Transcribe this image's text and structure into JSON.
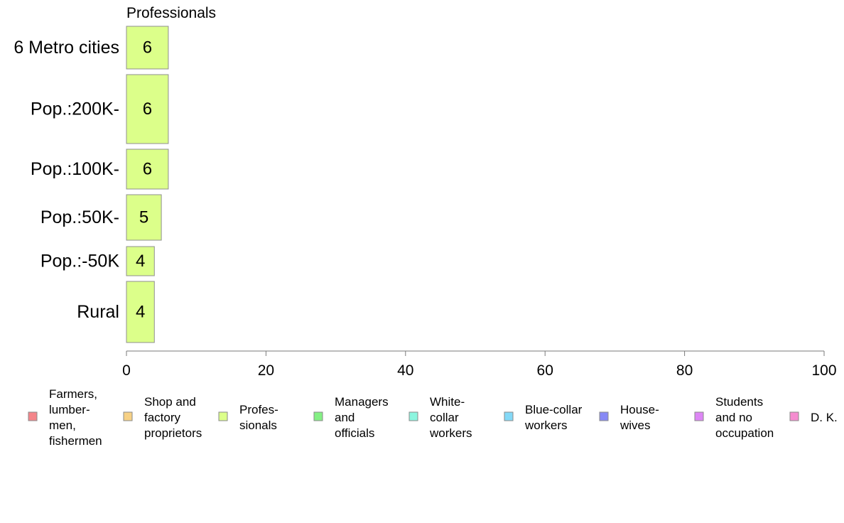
{
  "chart_data": {
    "type": "bar",
    "orientation": "horizontal",
    "panel_title": "Professionals",
    "categories": [
      "6 Metro cities",
      "Pop.:200K-",
      "Pop.:100K-",
      "Pop.:50K-",
      "Pop.:-50K",
      "Rural"
    ],
    "series": [
      {
        "name": "Professionals",
        "values": [
          6,
          6,
          6,
          5,
          4,
          4
        ],
        "labels": [
          "6",
          "6",
          "6",
          "5",
          "4",
          "4"
        ],
        "color": "#dcff8a",
        "stroke": "#8f8f8f"
      }
    ],
    "xlim": [
      0,
      100
    ],
    "xticks": [
      0,
      20,
      40,
      60,
      80,
      100
    ],
    "grid": false,
    "legend_position": "bottom",
    "legend": [
      {
        "label": "Farmers, lumber- men, fishermen",
        "lines": [
          "Farmers,",
          "lumber-",
          "men,",
          "fishermen"
        ],
        "color": "#f4858a"
      },
      {
        "label": "Shop and factory proprietors",
        "lines": [
          "Shop and",
          "factory",
          "proprietors"
        ],
        "color": "#f7d185"
      },
      {
        "label": "Profes- sionals",
        "lines": [
          "Profes-",
          "sionals"
        ],
        "color": "#dcff8a"
      },
      {
        "label": "Managers and officials",
        "lines": [
          "Managers",
          "and",
          "officials"
        ],
        "color": "#84f084"
      },
      {
        "label": "White- collar workers",
        "lines": [
          "White-",
          "collar",
          "workers"
        ],
        "color": "#8cf5df"
      },
      {
        "label": "Blue-collar workers",
        "lines": [
          "Blue-collar",
          "workers"
        ],
        "color": "#84d9f7"
      },
      {
        "label": "House- wives",
        "lines": [
          "House-",
          "wives"
        ],
        "color": "#8789f5"
      },
      {
        "label": "Students and no occupation",
        "lines": [
          "Students",
          "and no",
          "occupation"
        ],
        "color": "#dd86f5"
      },
      {
        "label": "D. K.",
        "lines": [
          "D. K."
        ],
        "color": "#f58dd0"
      }
    ]
  }
}
